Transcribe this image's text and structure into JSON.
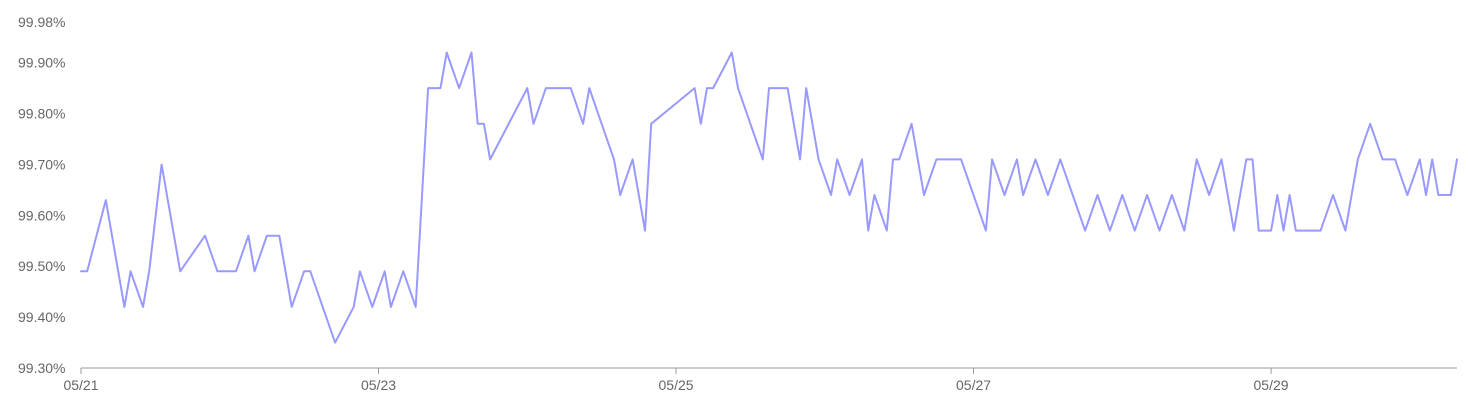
{
  "chart_data": {
    "type": "line",
    "title": "",
    "xlabel": "",
    "ylabel": "",
    "grid": false,
    "legend": "none",
    "line_color": "#9999ff",
    "axis_color": "#999999",
    "label_color": "#666666",
    "xlim": [
      "05/21 00:00",
      "05/30 06:00"
    ],
    "ylim": [
      99.3,
      99.98
    ],
    "y_ticks": [
      99.3,
      99.4,
      99.5,
      99.6,
      99.7,
      99.8,
      99.9,
      99.98
    ],
    "y_tick_labels": [
      "99.30%",
      "99.40%",
      "99.50%",
      "99.60%",
      "99.70%",
      "99.80%",
      "99.90%",
      "99.98%"
    ],
    "x_tick_positions": [
      "05/21 00:00",
      "05/23 00:00",
      "05/25 00:00",
      "05/27 00:00",
      "05/29 00:00"
    ],
    "x_tick_labels": [
      "05/21",
      "05/23",
      "05/25",
      "05/27",
      "05/29"
    ],
    "series": [
      {
        "x": [
          "05/21 00:00",
          "05/21 01:00",
          "05/21 04:00",
          "05/21 07:00",
          "05/21 08:00",
          "05/21 10:00",
          "05/21 11:00",
          "05/21 13:00",
          "05/21 16:00",
          "05/21 20:00",
          "05/21 22:00",
          "05/22 01:00",
          "05/22 03:00",
          "05/22 04:00",
          "05/22 06:00",
          "05/22 08:00",
          "05/22 10:00",
          "05/22 12:00",
          "05/22 13:00",
          "05/22 15:00",
          "05/22 17:00",
          "05/22 20:00",
          "05/22 21:00",
          "05/22 23:00",
          "05/23 01:00",
          "05/23 02:00",
          "05/23 04:00",
          "05/23 06:00",
          "05/23 08:00",
          "05/23 10:00",
          "05/23 11:00",
          "05/23 13:00",
          "05/23 15:00",
          "05/23 16:00",
          "05/23 17:00",
          "05/23 18:00",
          "05/24 00:00",
          "05/24 01:00",
          "05/24 03:00",
          "05/24 05:00",
          "05/24 07:00",
          "05/24 09:00",
          "05/24 10:00",
          "05/24 12:00",
          "05/24 14:00",
          "05/24 15:00",
          "05/24 17:00",
          "05/24 19:00",
          "05/24 20:00",
          "05/25 03:00",
          "05/25 04:00",
          "05/25 05:00",
          "05/25 06:00",
          "05/25 09:00",
          "05/25 10:00",
          "05/25 12:00",
          "05/25 14:00",
          "05/25 15:00",
          "05/25 16:00",
          "05/25 18:00",
          "05/25 20:00",
          "05/25 21:00",
          "05/25 23:00",
          "05/26 01:00",
          "05/26 02:00",
          "05/26 04:00",
          "05/26 06:00",
          "05/26 07:00",
          "05/26 08:00",
          "05/26 10:00",
          "05/26 11:00",
          "05/26 12:00",
          "05/26 14:00",
          "05/26 16:00",
          "05/26 18:00",
          "05/26 20:00",
          "05/26 22:00",
          "05/27 00:00",
          "05/27 02:00",
          "05/27 03:00",
          "05/27 05:00",
          "05/27 07:00",
          "05/27 08:00",
          "05/27 10:00",
          "05/27 12:00",
          "05/27 14:00",
          "05/27 16:00",
          "05/27 18:00",
          "05/27 20:00",
          "05/27 22:00",
          "05/28 00:00",
          "05/28 02:00",
          "05/28 04:00",
          "05/28 06:00",
          "05/28 08:00",
          "05/28 10:00",
          "05/28 12:00",
          "05/28 14:00",
          "05/28 16:00",
          "05/28 18:00",
          "05/28 20:00",
          "05/28 21:00",
          "05/28 22:00",
          "05/29 00:00",
          "05/29 01:00",
          "05/29 02:00",
          "05/29 03:00",
          "05/29 04:00",
          "05/29 06:00",
          "05/29 08:00",
          "05/29 10:00",
          "05/29 12:00",
          "05/29 14:00",
          "05/29 16:00",
          "05/29 18:00",
          "05/29 20:00",
          "05/29 22:00",
          "05/30 00:00",
          "05/30 01:00",
          "05/30 02:00",
          "05/30 03:00",
          "05/30 04:00",
          "05/30 05:00",
          "05/30 06:00"
        ],
        "y": [
          99.49,
          99.49,
          99.63,
          99.42,
          99.49,
          99.42,
          99.49,
          99.7,
          99.49,
          99.56,
          99.49,
          99.49,
          99.56,
          99.49,
          99.56,
          99.56,
          99.42,
          99.49,
          99.49,
          99.42,
          99.35,
          99.42,
          99.49,
          99.42,
          99.49,
          99.42,
          99.49,
          99.42,
          99.85,
          99.85,
          99.92,
          99.85,
          99.92,
          99.78,
          99.78,
          99.71,
          99.85,
          99.78,
          99.85,
          99.85,
          99.85,
          99.78,
          99.85,
          99.78,
          99.71,
          99.64,
          99.71,
          99.57,
          99.78,
          99.85,
          99.78,
          99.85,
          99.85,
          99.92,
          99.85,
          99.78,
          99.71,
          99.85,
          99.85,
          99.85,
          99.71,
          99.85,
          99.71,
          99.64,
          99.71,
          99.64,
          99.71,
          99.57,
          99.64,
          99.57,
          99.71,
          99.71,
          99.78,
          99.64,
          99.71,
          99.71,
          99.71,
          99.64,
          99.57,
          99.71,
          99.64,
          99.71,
          99.64,
          99.71,
          99.64,
          99.71,
          99.64,
          99.57,
          99.64,
          99.57,
          99.64,
          99.57,
          99.64,
          99.57,
          99.64,
          99.57,
          99.71,
          99.64,
          99.71,
          99.57,
          99.71,
          99.71,
          99.57,
          99.57,
          99.64,
          99.57,
          99.64,
          99.57,
          99.57,
          99.57,
          99.64,
          99.57,
          99.71,
          99.78,
          99.71,
          99.71,
          99.64,
          99.71,
          99.64,
          99.71,
          99.64,
          99.64,
          99.64,
          99.71
        ]
      }
    ]
  }
}
